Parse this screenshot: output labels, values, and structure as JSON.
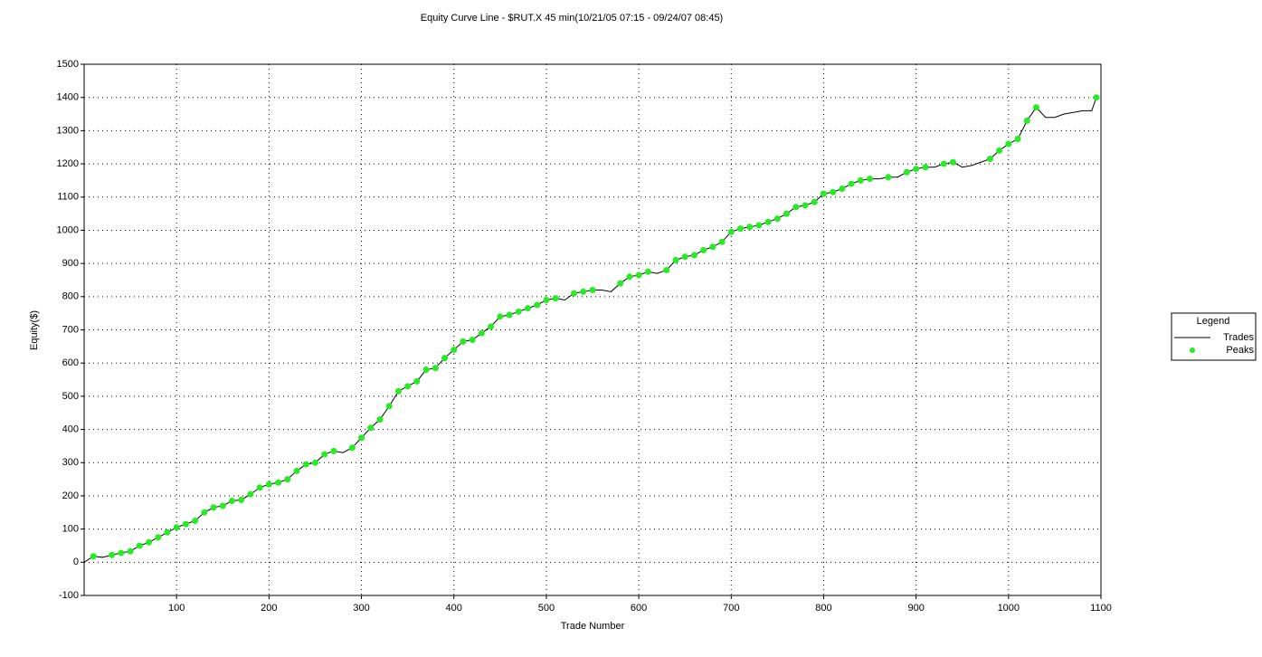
{
  "chart_data": {
    "type": "line",
    "title": "Equity Curve Line - $RUT.X 45 min(10/21/05 07:15 - 09/24/07 08:45)",
    "x_label": "Trade Number",
    "y_label": "Equity($)",
    "xlim": [
      0,
      1100
    ],
    "ylim": [
      -100,
      1500
    ],
    "xticks": [
      100,
      200,
      300,
      400,
      500,
      600,
      700,
      800,
      900,
      1000,
      1100
    ],
    "yticks": [
      -100,
      0,
      100,
      200,
      300,
      400,
      500,
      600,
      700,
      800,
      900,
      1000,
      1100,
      1200,
      1300,
      1400,
      1500
    ],
    "grid": true,
    "legend_title": "Legend",
    "legend_position": "right",
    "series": [
      {
        "name": "Trades",
        "color": "#000000",
        "style": "line",
        "x": [
          0,
          10,
          20,
          30,
          40,
          50,
          60,
          70,
          80,
          90,
          100,
          110,
          120,
          130,
          140,
          150,
          160,
          170,
          180,
          190,
          200,
          210,
          220,
          230,
          240,
          250,
          260,
          270,
          280,
          290,
          300,
          310,
          320,
          330,
          340,
          350,
          360,
          370,
          380,
          390,
          400,
          410,
          420,
          430,
          440,
          450,
          460,
          470,
          480,
          490,
          500,
          510,
          520,
          530,
          540,
          550,
          560,
          570,
          580,
          590,
          600,
          610,
          620,
          630,
          640,
          650,
          660,
          670,
          680,
          690,
          700,
          710,
          720,
          730,
          740,
          750,
          760,
          770,
          780,
          790,
          800,
          810,
          820,
          830,
          840,
          850,
          860,
          870,
          880,
          890,
          900,
          910,
          920,
          930,
          940,
          950,
          960,
          970,
          980,
          990,
          1000,
          1010,
          1020,
          1030,
          1040,
          1050,
          1060,
          1070,
          1080,
          1090,
          1095
        ],
        "values": [
          0,
          18,
          15,
          22,
          28,
          33,
          50,
          60,
          75,
          90,
          105,
          115,
          125,
          150,
          165,
          170,
          185,
          188,
          205,
          225,
          235,
          240,
          250,
          275,
          295,
          300,
          325,
          335,
          330,
          345,
          375,
          405,
          430,
          470,
          515,
          530,
          545,
          580,
          585,
          615,
          640,
          665,
          670,
          690,
          710,
          740,
          745,
          755,
          765,
          775,
          790,
          795,
          790,
          810,
          815,
          820,
          820,
          815,
          840,
          860,
          865,
          875,
          870,
          880,
          910,
          920,
          925,
          940,
          950,
          965,
          995,
          1005,
          1010,
          1015,
          1025,
          1035,
          1050,
          1070,
          1075,
          1085,
          1110,
          1115,
          1125,
          1140,
          1150,
          1155,
          1155,
          1160,
          1160,
          1175,
          1185,
          1190,
          1190,
          1200,
          1205,
          1190,
          1195,
          1205,
          1215,
          1240,
          1260,
          1275,
          1330,
          1370,
          1340,
          1340,
          1350,
          1355,
          1360,
          1360,
          1400
        ]
      },
      {
        "name": "Peaks",
        "color": "#22ee22",
        "style": "marker",
        "x": [
          10,
          30,
          40,
          50,
          60,
          70,
          80,
          90,
          100,
          110,
          120,
          130,
          140,
          150,
          160,
          170,
          180,
          190,
          200,
          210,
          220,
          230,
          240,
          250,
          260,
          270,
          290,
          300,
          310,
          320,
          330,
          340,
          350,
          360,
          370,
          380,
          390,
          400,
          410,
          420,
          430,
          440,
          450,
          460,
          470,
          480,
          490,
          500,
          510,
          530,
          540,
          550,
          580,
          590,
          600,
          610,
          630,
          640,
          650,
          660,
          670,
          680,
          690,
          700,
          710,
          720,
          730,
          740,
          750,
          760,
          770,
          780,
          790,
          800,
          810,
          820,
          830,
          840,
          850,
          870,
          890,
          900,
          910,
          930,
          940,
          980,
          990,
          1000,
          1010,
          1020,
          1030,
          1095
        ],
        "values": [
          18,
          22,
          28,
          33,
          50,
          60,
          75,
          90,
          105,
          115,
          125,
          150,
          165,
          170,
          185,
          188,
          205,
          225,
          235,
          240,
          250,
          275,
          295,
          300,
          325,
          335,
          345,
          375,
          405,
          430,
          470,
          515,
          530,
          545,
          580,
          585,
          615,
          640,
          665,
          670,
          690,
          710,
          740,
          745,
          755,
          765,
          775,
          790,
          795,
          810,
          815,
          820,
          840,
          860,
          865,
          875,
          880,
          910,
          920,
          925,
          940,
          950,
          965,
          995,
          1005,
          1010,
          1015,
          1025,
          1035,
          1050,
          1070,
          1075,
          1085,
          1110,
          1115,
          1125,
          1140,
          1150,
          1155,
          1160,
          1175,
          1185,
          1190,
          1200,
          1205,
          1215,
          1240,
          1260,
          1275,
          1330,
          1370,
          1400
        ]
      }
    ]
  }
}
